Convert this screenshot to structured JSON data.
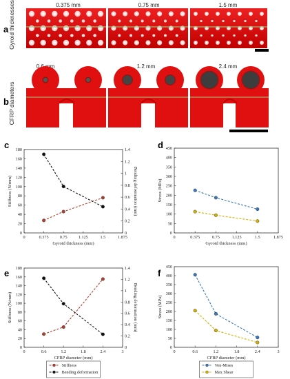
{
  "panel_a": {
    "letter": "a",
    "side_label": "Gyroid thicknesses",
    "labels": [
      "0.375 mm",
      "0.75 mm",
      "1.5 mm"
    ]
  },
  "panel_b": {
    "letter": "b",
    "side_label": "CFRP diameters",
    "labels": [
      "0.6 mm",
      "1.2 mm",
      "2.4 mm"
    ]
  },
  "colors": {
    "red": "#e01010",
    "red_dark": "#b00000",
    "stiffness": "#b04030",
    "bending": "#111111",
    "von_mises": "#3a77b8",
    "max_shear": "#d4b000"
  },
  "chart_data": [
    {
      "id": "c",
      "letter": "c",
      "type": "line",
      "xlabel": "Gyroid thickness (mm)",
      "ylabel": "Stiffness (N/mm)",
      "y2label": "Bending deformation (mm)",
      "xlim": [
        0,
        1.875
      ],
      "xticks": [
        "0",
        "0.375",
        "0.75",
        "1.125",
        "1.5",
        "1.875"
      ],
      "ylim": [
        0,
        180
      ],
      "yticks": [
        "0",
        "20",
        "40",
        "60",
        "80",
        "100",
        "120",
        "140",
        "160",
        "180"
      ],
      "y2lim": [
        0,
        1.4
      ],
      "y2ticks": [
        "0",
        "0.2",
        "0.4",
        "0.6",
        "0.8",
        "1",
        "1.2",
        "1.4"
      ],
      "series": [
        {
          "key": "stiffness",
          "axis": "left",
          "color": "#b04030",
          "x": [
            0.375,
            0.75,
            1.5
          ],
          "values": [
            27,
            46,
            76
          ]
        },
        {
          "key": "bending",
          "axis": "right",
          "color": "#111111",
          "x": [
            0.375,
            0.75,
            1.5
          ],
          "values": [
            1.32,
            0.78,
            0.44
          ]
        }
      ]
    },
    {
      "id": "d",
      "letter": "d",
      "type": "line",
      "xlabel": "Gyroid thickness (mm)",
      "ylabel": "Stress (MPa)",
      "xlim": [
        0,
        1.875
      ],
      "xticks": [
        "0",
        "0.375",
        "0.75",
        "1.125",
        "1.5",
        "1.875"
      ],
      "ylim": [
        0,
        450
      ],
      "yticks": [
        "0",
        "50",
        "100",
        "150",
        "200",
        "250",
        "300",
        "350",
        "400",
        "450"
      ],
      "series": [
        {
          "key": "von_mises",
          "axis": "left",
          "color": "#3a77b8",
          "x": [
            0.375,
            0.75,
            1.5
          ],
          "values": [
            226,
            187,
            126
          ]
        },
        {
          "key": "max_shear",
          "axis": "left",
          "color": "#d4b000",
          "x": [
            0.375,
            0.75,
            1.5
          ],
          "values": [
            113,
            94,
            63
          ]
        }
      ]
    },
    {
      "id": "e",
      "letter": "e",
      "type": "line",
      "xlabel": "CFRP diameter (mm)",
      "ylabel": "Stiffness (N/mm)",
      "y2label": "Bending deformation (mm)",
      "xlim": [
        0,
        3
      ],
      "xticks": [
        "0",
        "0.6",
        "1.2",
        "1.8",
        "2.4",
        "3"
      ],
      "ylim": [
        0,
        180
      ],
      "yticks": [
        "0",
        "20",
        "40",
        "60",
        "80",
        "100",
        "120",
        "140",
        "160",
        "180"
      ],
      "y2lim": [
        0,
        1.4
      ],
      "y2ticks": [
        "0",
        "0.2",
        "0.4",
        "0.6",
        "0.8",
        "1",
        "1.2",
        "1.4"
      ],
      "series": [
        {
          "key": "stiffness",
          "axis": "left",
          "color": "#b04030",
          "x": [
            0.6,
            1.2,
            2.4
          ],
          "values": [
            30,
            46,
            155
          ]
        },
        {
          "key": "bending",
          "axis": "right",
          "color": "#111111",
          "x": [
            0.6,
            1.2,
            2.4
          ],
          "values": [
            1.22,
            0.77,
            0.23
          ]
        }
      ],
      "legend": [
        "Stiffness",
        "Bending deformation"
      ]
    },
    {
      "id": "f",
      "letter": "f",
      "type": "line",
      "xlabel": "CFRP diameter (mm)",
      "ylabel": "Stress (MPa)",
      "xlim": [
        0,
        3
      ],
      "xticks": [
        "0",
        "0.6",
        "1.2",
        "1.8",
        "2.4",
        "3"
      ],
      "ylim": [
        0,
        450
      ],
      "yticks": [
        "0",
        "50",
        "100",
        "150",
        "200",
        "250",
        "300",
        "350",
        "400",
        "450"
      ],
      "series": [
        {
          "key": "von_mises",
          "axis": "left",
          "color": "#3a77b8",
          "x": [
            0.6,
            1.2,
            2.4
          ],
          "values": [
            405,
            187,
            55
          ]
        },
        {
          "key": "max_shear",
          "axis": "left",
          "color": "#d4b000",
          "x": [
            0.6,
            1.2,
            2.4
          ],
          "values": [
            205,
            94,
            27
          ]
        }
      ],
      "legend": [
        "Von-Mises",
        "Max Shear"
      ]
    }
  ]
}
